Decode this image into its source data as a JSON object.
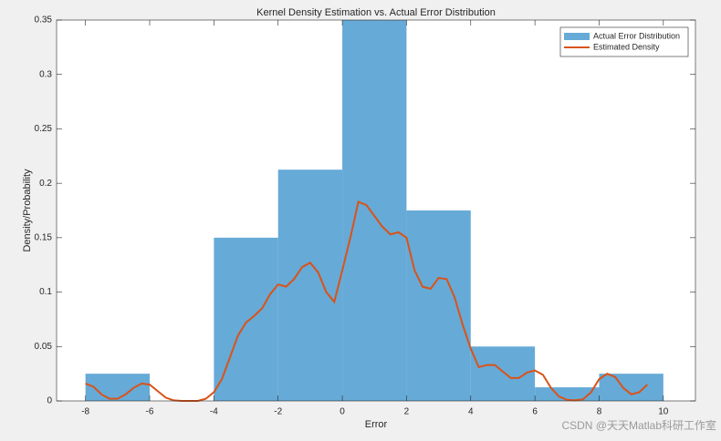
{
  "chart_data": {
    "type": "histogram",
    "title": "Kernel Density Estimation vs. Actual Error Distribution",
    "x_label": "Error",
    "y_label": "Density/Probability",
    "xlim": [
      -8.9,
      11
    ],
    "ylim": [
      0,
      0.35
    ],
    "xticks": [
      -8,
      -6,
      -4,
      -2,
      0,
      2,
      4,
      6,
      8,
      10
    ],
    "yticks": [
      0,
      0.05,
      0.1,
      0.15,
      0.2,
      0.25,
      0.3,
      0.35
    ],
    "legend": "northeast",
    "series": [
      {
        "name": "Actual Error Distribution",
        "type": "histogram",
        "color": "#66aad7",
        "bins": [
          -8,
          -6,
          -4,
          -2,
          0,
          2,
          4,
          6,
          8,
          10
        ],
        "values": [
          0.025,
          0,
          0.15,
          0.2125,
          0.35,
          0.175,
          0.05,
          0.0125,
          0.025
        ]
      },
      {
        "name": "Estimated Density",
        "type": "line",
        "color": "#d95319",
        "x": [
          -8,
          -7.75,
          -7.5,
          -7.25,
          -7,
          -6.75,
          -6.5,
          -6.25,
          -6,
          -5.75,
          -5.5,
          -5.25,
          -5,
          -4.75,
          -4.5,
          -4.25,
          -4,
          -3.75,
          -3.5,
          -3.25,
          -3,
          -2.75,
          -2.5,
          -2.25,
          -2,
          -1.75,
          -1.5,
          -1.25,
          -1,
          -0.75,
          -0.5,
          -0.25,
          0,
          0.25,
          0.5,
          0.75,
          1,
          1.25,
          1.5,
          1.75,
          2,
          2.25,
          2.5,
          2.75,
          3,
          3.25,
          3.5,
          3.75,
          4,
          4.25,
          4.5,
          4.75,
          5,
          5.25,
          5.5,
          5.75,
          6,
          6.25,
          6.5,
          6.75,
          7,
          7.25,
          7.5,
          7.75,
          8,
          8.25,
          8.5,
          8.75,
          9,
          9.25,
          9.5
        ],
        "values": [
          0.016,
          0.013,
          0.006,
          0.002,
          0.002,
          0.006,
          0.012,
          0.016,
          0.015,
          0.009,
          0.003,
          0.0005,
          0,
          0,
          0,
          0.002,
          0.008,
          0.02,
          0.04,
          0.06,
          0.072,
          0.078,
          0.085,
          0.098,
          0.107,
          0.105,
          0.112,
          0.123,
          0.127,
          0.118,
          0.1,
          0.091,
          0.12,
          0.15,
          0.183,
          0.18,
          0.17,
          0.16,
          0.153,
          0.155,
          0.15,
          0.12,
          0.105,
          0.103,
          0.113,
          0.112,
          0.095,
          0.07,
          0.048,
          0.031,
          0.033,
          0.033,
          0.027,
          0.021,
          0.021,
          0.026,
          0.028,
          0.024,
          0.012,
          0.004,
          0.001,
          0.0005,
          0.0015,
          0.008,
          0.02,
          0.025,
          0.022,
          0.012,
          0.006,
          0.008,
          0.015
        ]
      }
    ],
    "watermark": "CSDN @天天Matlab科研工作室"
  }
}
